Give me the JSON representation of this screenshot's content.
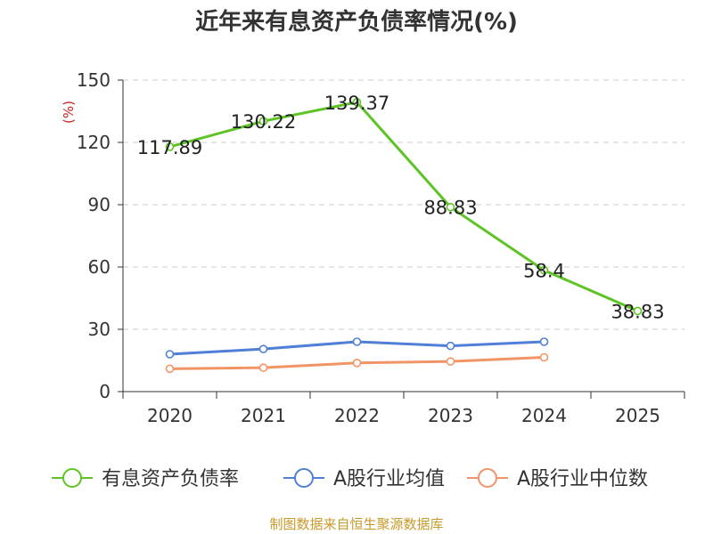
{
  "chart_data": {
    "type": "line",
    "title": "近年来有息资产负债率情况(%)",
    "ylabel": "(%)",
    "xlabel": "",
    "ylim": [
      0,
      150
    ],
    "yticks": [
      0,
      30,
      60,
      90,
      120,
      150
    ],
    "categories": [
      "2020",
      "2021",
      "2022",
      "2023",
      "2024",
      "2025"
    ],
    "grid": true,
    "legend_position": "bottom",
    "series": [
      {
        "name": "有息资产负债率",
        "color": "#5ec425",
        "values": [
          117.89,
          130.22,
          139.37,
          88.83,
          58.4,
          38.83
        ],
        "labels": [
          "117.89",
          "130.22",
          "139.37",
          "88.83",
          "58.4",
          "38.83"
        ]
      },
      {
        "name": "A股行业均值",
        "color": "#4f7fd6",
        "values": [
          18,
          20.5,
          24,
          22,
          24,
          null
        ]
      },
      {
        "name": "A股行业中位数",
        "color": "#f29566",
        "values": [
          11,
          11.5,
          13.8,
          14.5,
          16.5,
          null
        ]
      }
    ]
  },
  "footer": {
    "source": "制图数据来自恒生聚源数据库"
  }
}
